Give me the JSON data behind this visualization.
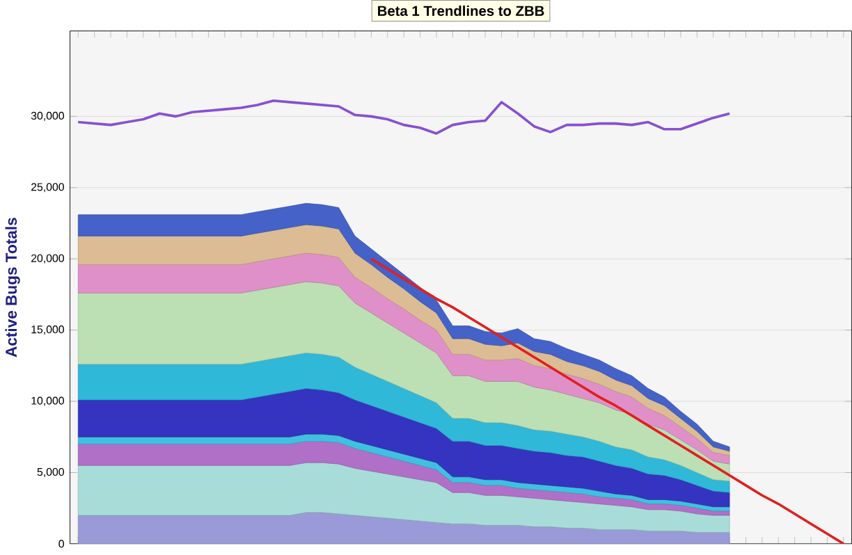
{
  "chart_data": {
    "type": "area",
    "stacked": true,
    "title": "Beta 1 Trendlines to ZBB",
    "ylabel": "Active Bugs Totals",
    "categories": [
      null,
      null,
      null,
      null,
      null,
      null,
      null,
      null,
      null,
      null,
      null,
      null,
      null,
      null,
      null,
      null,
      null,
      null,
      null,
      null,
      null,
      null,
      null,
      null,
      null,
      null,
      null,
      null,
      null,
      null,
      null,
      null,
      null,
      null,
      null,
      null,
      null,
      null,
      null,
      null,
      null,
      null,
      null,
      null,
      null,
      null,
      null,
      null
    ],
    "ylim": [
      0,
      36000
    ],
    "yticks": [
      {
        "value": 0,
        "label": "0"
      },
      {
        "value": 5000,
        "label": "5,000"
      },
      {
        "value": 10000,
        "label": "10,000"
      },
      {
        "value": 15000,
        "label": "15,000"
      },
      {
        "value": 20000,
        "label": "20,000"
      },
      {
        "value": 25000,
        "label": "25,000"
      },
      {
        "value": 30000,
        "label": "30,000"
      }
    ],
    "grid": "y",
    "tick_labels": "y",
    "series": [
      {
        "color": "#9a9ad8",
        "values": [
          2000,
          2000,
          2000,
          2000,
          2000,
          2000,
          2000,
          2000,
          2000,
          2000,
          2000,
          2000,
          2000,
          2000,
          2200,
          2200,
          2100,
          2000,
          1900,
          1800,
          1700,
          1600,
          1500,
          1400,
          1400,
          1300,
          1300,
          1300,
          1200,
          1200,
          1100,
          1100,
          1000,
          1000,
          1000,
          900,
          900,
          900,
          800,
          800,
          800,
          null,
          null,
          null,
          null,
          null,
          null,
          null
        ]
      },
      {
        "color": "#a8dcd8",
        "values": [
          3500,
          3500,
          3500,
          3500,
          3500,
          3500,
          3500,
          3500,
          3500,
          3500,
          3500,
          3500,
          3500,
          3500,
          3500,
          3500,
          3500,
          3300,
          3200,
          3100,
          3000,
          2900,
          2800,
          2200,
          2200,
          2100,
          2100,
          2000,
          2000,
          1900,
          1900,
          1800,
          1800,
          1700,
          1600,
          1500,
          1500,
          1400,
          1300,
          1200,
          1200,
          null,
          null,
          null,
          null,
          null,
          null,
          null
        ]
      },
      {
        "color": "#b070c8",
        "values": [
          1500,
          1500,
          1500,
          1500,
          1500,
          1500,
          1500,
          1500,
          1500,
          1500,
          1500,
          1500,
          1500,
          1500,
          1500,
          1500,
          1500,
          1400,
          1300,
          1200,
          1100,
          1000,
          900,
          700,
          700,
          700,
          700,
          600,
          600,
          600,
          600,
          600,
          500,
          500,
          500,
          400,
          400,
          400,
          400,
          300,
          300,
          null,
          null,
          null,
          null,
          null,
          null,
          null
        ]
      },
      {
        "color": "#40c0e0",
        "values": [
          500,
          500,
          500,
          500,
          500,
          500,
          500,
          500,
          500,
          500,
          500,
          500,
          500,
          500,
          500,
          500,
          500,
          500,
          500,
          500,
          500,
          500,
          500,
          400,
          400,
          400,
          400,
          400,
          400,
          400,
          400,
          400,
          400,
          300,
          300,
          300,
          300,
          300,
          300,
          300,
          300,
          null,
          null,
          null,
          null,
          null,
          null,
          null
        ]
      },
      {
        "color": "#3434c0",
        "values": [
          2600,
          2600,
          2600,
          2600,
          2600,
          2600,
          2600,
          2600,
          2600,
          2600,
          2600,
          2800,
          3000,
          3200,
          3200,
          3100,
          3000,
          2900,
          2800,
          2700,
          2600,
          2500,
          2400,
          2500,
          2500,
          2400,
          2400,
          2400,
          2300,
          2300,
          2200,
          2200,
          2100,
          2000,
          1900,
          1800,
          1700,
          1500,
          1300,
          1100,
          1000,
          null,
          null,
          null,
          null,
          null,
          null,
          null
        ]
      },
      {
        "color": "#30b8d8",
        "values": [
          2500,
          2500,
          2500,
          2500,
          2500,
          2500,
          2500,
          2500,
          2500,
          2500,
          2500,
          2500,
          2500,
          2500,
          2500,
          2500,
          2500,
          2300,
          2200,
          2100,
          2000,
          1900,
          1800,
          1600,
          1600,
          1600,
          1600,
          1600,
          1500,
          1500,
          1500,
          1400,
          1400,
          1300,
          1300,
          1200,
          1100,
          1000,
          900,
          800,
          800,
          null,
          null,
          null,
          null,
          null,
          null,
          null
        ]
      },
      {
        "color": "#bce0b4",
        "values": [
          5000,
          5000,
          5000,
          5000,
          5000,
          5000,
          5000,
          5000,
          5000,
          5000,
          5000,
          5000,
          5000,
          5000,
          5000,
          5000,
          5000,
          4500,
          4300,
          4100,
          3900,
          3700,
          3500,
          3000,
          3000,
          2900,
          2900,
          3100,
          3000,
          2900,
          2800,
          2700,
          2700,
          2600,
          2500,
          2300,
          2100,
          1800,
          1600,
          1300,
          1200,
          null,
          null,
          null,
          null,
          null,
          null,
          null
        ]
      },
      {
        "color": "#e090c8",
        "values": [
          2000,
          2000,
          2000,
          2000,
          2000,
          2000,
          2000,
          2000,
          2000,
          2000,
          2000,
          2000,
          2000,
          2000,
          2000,
          2000,
          2000,
          1800,
          1800,
          1700,
          1700,
          1600,
          1600,
          1500,
          1500,
          1500,
          1500,
          1600,
          1500,
          1500,
          1400,
          1400,
          1300,
          1300,
          1200,
          1100,
          1000,
          900,
          800,
          600,
          600,
          null,
          null,
          null,
          null,
          null,
          null,
          null
        ]
      },
      {
        "color": "#dcbc94",
        "values": [
          2000,
          2000,
          2000,
          2000,
          2000,
          2000,
          2000,
          2000,
          2000,
          2000,
          2000,
          2000,
          2000,
          2000,
          2000,
          2000,
          2000,
          1700,
          1600,
          1500,
          1400,
          1300,
          1200,
          1100,
          1100,
          1100,
          1000,
          1100,
          1000,
          1000,
          900,
          900,
          900,
          800,
          800,
          700,
          700,
          600,
          500,
          400,
          300,
          null,
          null,
          null,
          null,
          null,
          null,
          null
        ]
      },
      {
        "color": "#4462c8",
        "values": [
          1500,
          1500,
          1500,
          1500,
          1500,
          1500,
          1500,
          1500,
          1500,
          1500,
          1500,
          1500,
          1500,
          1500,
          1500,
          1500,
          1500,
          1200,
          1100,
          1100,
          1000,
          1000,
          900,
          900,
          900,
          900,
          900,
          1000,
          900,
          900,
          900,
          800,
          800,
          800,
          700,
          700,
          600,
          500,
          500,
          400,
          300,
          null,
          null,
          null,
          null,
          null,
          null,
          null
        ]
      },
      {
        "type": "line",
        "color": "#8850d0",
        "values": [
          29600,
          29500,
          29400,
          29600,
          29800,
          30200,
          30000,
          30300,
          30400,
          30500,
          30600,
          30800,
          31100,
          31000,
          30900,
          30800,
          30700,
          30100,
          30000,
          29800,
          29400,
          29200,
          28800,
          29400,
          29600,
          29700,
          31000,
          30200,
          29300,
          28900,
          29400,
          29400,
          29500,
          29500,
          29400,
          29600,
          29100,
          29100,
          29500,
          29900,
          30200,
          null,
          null,
          null,
          null,
          null,
          null,
          null
        ]
      },
      {
        "type": "line",
        "color": "#e02020",
        "values": [
          null,
          null,
          null,
          null,
          null,
          null,
          null,
          null,
          null,
          null,
          null,
          null,
          null,
          null,
          null,
          null,
          null,
          null,
          20000,
          19300,
          18600,
          17900,
          17200,
          16600,
          15900,
          15200,
          14500,
          13800,
          13100,
          12400,
          11700,
          11000,
          10300,
          9700,
          9000,
          8300,
          7600,
          6900,
          6200,
          5500,
          4800,
          4100,
          3400,
          2800,
          2100,
          1400,
          700,
          0
        ]
      }
    ]
  }
}
